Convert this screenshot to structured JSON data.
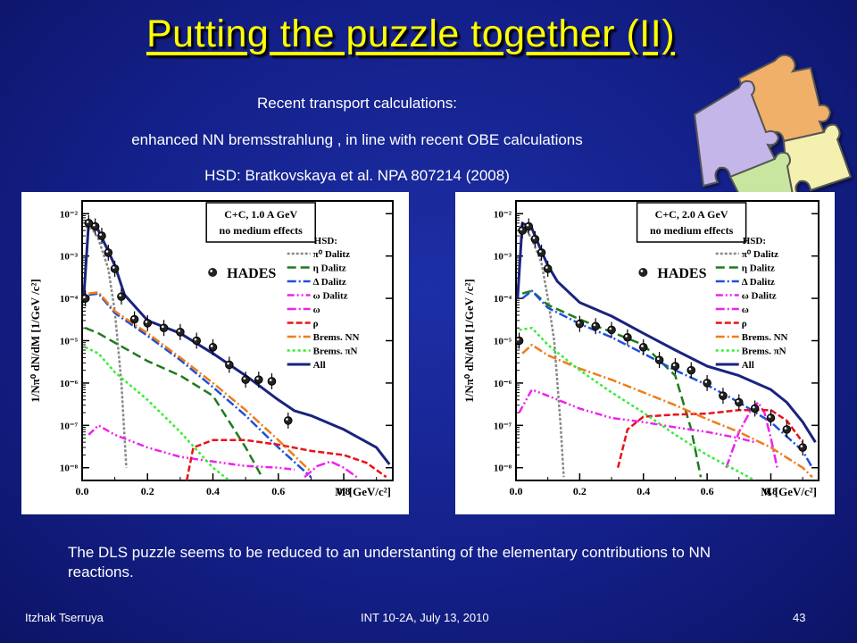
{
  "slide": {
    "title": "Putting the puzzle together (II)",
    "subtitle_line1": "Recent  transport calculations:",
    "subtitle_line2": "enhanced NN bremsstrahlung , in line with recent OBE calculations",
    "subtitle_line3": "HSD:  Bratkovskaya et al. NPA 807214 (2008)",
    "conclusion": "The DLS puzzle seems to be reduced to an understanting of the elementary contributions to NN reactions.",
    "footer_left": "Itzhak Tserruya",
    "footer_center": "INT 10-2A, July 13, 2010",
    "footer_right": "43"
  },
  "colors": {
    "pi0": "#888888",
    "eta": "#1f7a1f",
    "delta": "#1f4fd6",
    "omega_dalitz": "#ee22ee",
    "omega": "#ee22ee",
    "rho": "#e8121a",
    "brems_nn": "#ee7d1a",
    "brems_pin": "#33ee33",
    "all": "#1a237e"
  },
  "chart_data": [
    {
      "type": "line",
      "title": "C+C, 1.0 A GeV",
      "subtitle": "no medium effects",
      "xlabel": "M [GeV/c²]",
      "ylabel": "1/Nπ⁰ dN/dM  [1/GeV /c²]",
      "ylog": true,
      "xlim": [
        0,
        0.95
      ],
      "ylim": [
        5e-09,
        0.02
      ],
      "x_ticks": [
        "0.0",
        "0.2",
        "0.4",
        "0.6",
        "0.8"
      ],
      "y_ticks": [
        "10⁻²",
        "10⁻³",
        "10⁻⁴",
        "10⁻⁵",
        "10⁻⁶",
        "10⁻⁷",
        "10⁻⁸"
      ],
      "legend_title": "HSD:",
      "data_label": "HADES",
      "series": [
        {
          "name": "π⁰ Dalitz",
          "key": "pi0",
          "dash": "3,2",
          "x": [
            0.01,
            0.03,
            0.05,
            0.08,
            0.1,
            0.12,
            0.135
          ],
          "y": [
            0.005,
            0.0045,
            0.0025,
            0.0005,
            5e-05,
            1e-06,
            1e-08
          ]
        },
        {
          "name": "η Dalitz",
          "key": "eta",
          "dash": "10,5",
          "x": [
            0.01,
            0.05,
            0.1,
            0.2,
            0.3,
            0.4,
            0.5,
            0.55
          ],
          "y": [
            2e-05,
            1.5e-05,
            9e-06,
            3.3e-06,
            1.5e-06,
            5e-07,
            3e-08,
            6e-09
          ]
        },
        {
          "name": "Δ Dalitz",
          "key": "delta",
          "dash": "10,3,2,3",
          "x": [
            0.02,
            0.05,
            0.1,
            0.2,
            0.3,
            0.4,
            0.5,
            0.6,
            0.7
          ],
          "y": [
            0.00012,
            0.00013,
            4.5e-05,
            1.3e-05,
            3.5e-06,
            8e-07,
            1.7e-07,
            3e-08,
            6e-09
          ]
        },
        {
          "name": "ω Dalitz",
          "key": "omega_dalitz",
          "dash": "8,3,2,3,2,3",
          "x": [
            0.02,
            0.05,
            0.1,
            0.2,
            0.3,
            0.4,
            0.5,
            0.6,
            0.65
          ],
          "y": [
            6e-08,
            1e-07,
            6e-08,
            3e-08,
            1.8e-08,
            1.4e-08,
            1.1e-08,
            1e-08,
            9e-09
          ]
        },
        {
          "name": "ω",
          "key": "omega",
          "dash": "10,3,2,3",
          "x": [
            0.68,
            0.72,
            0.76,
            0.8,
            0.84
          ],
          "y": [
            6e-09,
            1.1e-08,
            1.4e-08,
            1e-08,
            6e-09
          ]
        },
        {
          "name": "ρ",
          "key": "rho",
          "dash": "7,3",
          "x": [
            0.32,
            0.34,
            0.4,
            0.5,
            0.6,
            0.7,
            0.8,
            0.87,
            0.93
          ],
          "y": [
            5e-09,
            3e-08,
            4.5e-08,
            4.5e-08,
            3.5e-08,
            2.5e-08,
            2e-08,
            1.3e-08,
            6e-09
          ]
        },
        {
          "name": "Brems. NN",
          "key": "brems_nn",
          "dash": "10,3,2,3",
          "x": [
            0.02,
            0.05,
            0.1,
            0.2,
            0.3,
            0.4,
            0.5,
            0.6,
            0.7
          ],
          "y": [
            0.00013,
            0.00014,
            5e-05,
            1.5e-05,
            4e-06,
            1e-06,
            2.3e-07,
            4.5e-08,
            8e-09
          ]
        },
        {
          "name": "Brems. πN",
          "key": "brems_pin",
          "dash": "3,3",
          "x": [
            0.01,
            0.05,
            0.1,
            0.2,
            0.3,
            0.4,
            0.45
          ],
          "y": [
            7e-06,
            5e-06,
            1.8e-06,
            4e-07,
            7e-08,
            1e-08,
            5e-09
          ]
        },
        {
          "name": "All",
          "key": "all",
          "dash": "",
          "x": [
            0.005,
            0.02,
            0.05,
            0.08,
            0.1,
            0.13,
            0.2,
            0.3,
            0.4,
            0.5,
            0.6,
            0.65,
            0.7,
            0.8,
            0.9,
            0.94
          ],
          "y": [
            0.0001,
            0.006,
            0.004,
            0.0013,
            0.0006,
            0.00012,
            3e-05,
            1.5e-05,
            5e-06,
            1.5e-06,
            4e-07,
            2.2e-07,
            1.7e-07,
            8e-08,
            3e-08,
            1.2e-08
          ]
        }
      ],
      "hades_points": [
        {
          "x": 0.01,
          "y": 0.0001
        },
        {
          "x": 0.02,
          "y": 0.006
        },
        {
          "x": 0.04,
          "y": 0.005
        },
        {
          "x": 0.06,
          "y": 0.003
        },
        {
          "x": 0.08,
          "y": 0.0012
        },
        {
          "x": 0.1,
          "y": 0.0005
        },
        {
          "x": 0.12,
          "y": 0.00011
        },
        {
          "x": 0.16,
          "y": 3.2e-05
        },
        {
          "x": 0.2,
          "y": 2.6e-05
        },
        {
          "x": 0.25,
          "y": 2e-05
        },
        {
          "x": 0.3,
          "y": 1.6e-05
        },
        {
          "x": 0.35,
          "y": 1e-05
        },
        {
          "x": 0.4,
          "y": 7e-06
        },
        {
          "x": 0.45,
          "y": 2.7e-06
        },
        {
          "x": 0.5,
          "y": 1.2e-06
        },
        {
          "x": 0.54,
          "y": 1.2e-06
        },
        {
          "x": 0.58,
          "y": 1.1e-06
        },
        {
          "x": 0.63,
          "y": 1.3e-07
        }
      ]
    },
    {
      "type": "line",
      "title": "C+C, 2.0 A GeV",
      "subtitle": "no medium effects",
      "xlabel": "M [GeV/c²]",
      "ylabel": "1/Nπ⁰ dN/dM  [1/GeV /c²]",
      "ylog": true,
      "xlim": [
        0,
        0.95
      ],
      "ylim": [
        5e-09,
        0.02
      ],
      "x_ticks": [
        "0.0",
        "0.2",
        "0.4",
        "0.6",
        "0.8"
      ],
      "y_ticks": [
        "10⁻²",
        "10⁻³",
        "10⁻⁴",
        "10⁻⁵",
        "10⁻⁶",
        "10⁻⁷",
        "10⁻⁸"
      ],
      "legend_title": "HSD:",
      "data_label": "HADES",
      "series": [
        {
          "name": "π⁰ Dalitz",
          "key": "pi0",
          "dash": "3,2",
          "x": [
            0.01,
            0.03,
            0.05,
            0.08,
            0.1,
            0.12,
            0.14,
            0.15
          ],
          "y": [
            0.005,
            0.0045,
            0.0025,
            0.0007,
            0.0001,
            1e-05,
            1e-07,
            6e-09
          ]
        },
        {
          "name": "η Dalitz",
          "key": "eta",
          "dash": "10,5",
          "x": [
            0.02,
            0.05,
            0.1,
            0.2,
            0.3,
            0.4,
            0.5,
            0.55,
            0.58
          ],
          "y": [
            0.00013,
            0.00015,
            7e-05,
            3.2e-05,
            1.6e-05,
            8e-06,
            1.5e-06,
            8e-08,
            6e-09
          ]
        },
        {
          "name": "Δ Dalitz",
          "key": "delta",
          "dash": "10,3,2,3",
          "x": [
            0.02,
            0.05,
            0.1,
            0.2,
            0.3,
            0.4,
            0.5,
            0.6,
            0.7,
            0.8,
            0.9,
            0.93
          ],
          "y": [
            0.0001,
            0.00015,
            6e-05,
            2.5e-05,
            1.2e-05,
            5e-06,
            2e-06,
            9e-07,
            3.5e-07,
            1.2e-07,
            2.5e-08,
            1e-08
          ]
        },
        {
          "name": "ω Dalitz",
          "key": "omega_dalitz",
          "dash": "8,3,2,3,2,3",
          "x": [
            0.01,
            0.05,
            0.1,
            0.2,
            0.3,
            0.4,
            0.5,
            0.6,
            0.7,
            0.75
          ],
          "y": [
            2e-07,
            7e-07,
            5e-07,
            2.5e-07,
            1.5e-07,
            1.2e-07,
            9e-08,
            7e-08,
            5e-08,
            4e-08
          ]
        },
        {
          "name": "ω",
          "key": "omega",
          "dash": "10,3,2,3",
          "x": [
            0.66,
            0.7,
            0.74,
            0.76,
            0.78,
            0.8,
            0.82
          ],
          "y": [
            1e-08,
            7e-08,
            2.5e-07,
            3.5e-07,
            2e-07,
            5e-08,
            1e-08
          ]
        },
        {
          "name": "ρ",
          "key": "rho",
          "dash": "7,3",
          "x": [
            0.32,
            0.35,
            0.4,
            0.5,
            0.6,
            0.7,
            0.8,
            0.85,
            0.9
          ],
          "y": [
            1e-08,
            8e-08,
            1.6e-07,
            1.8e-07,
            1.9e-07,
            2.3e-07,
            2.3e-07,
            1.3e-07,
            4e-08
          ]
        },
        {
          "name": "Brems. NN",
          "key": "brems_nn",
          "dash": "10,3,2,3",
          "x": [
            0.02,
            0.05,
            0.1,
            0.2,
            0.3,
            0.4,
            0.5,
            0.6,
            0.7,
            0.8,
            0.9,
            0.93
          ],
          "y": [
            5e-06,
            8e-06,
            4.5e-06,
            2.2e-06,
            1.2e-06,
            6e-07,
            3e-07,
            1.4e-07,
            7e-08,
            3e-08,
            1e-08,
            6e-09
          ]
        },
        {
          "name": "Brems. πN",
          "key": "brems_pin",
          "dash": "3,3",
          "x": [
            0.01,
            0.05,
            0.1,
            0.2,
            0.3,
            0.4,
            0.5,
            0.6,
            0.7,
            0.75
          ],
          "y": [
            1.8e-05,
            2e-05,
            8e-06,
            2e-06,
            6e-07,
            2e-07,
            6e-08,
            2e-08,
            8e-09,
            5e-09
          ]
        },
        {
          "name": "All",
          "key": "all",
          "dash": "",
          "x": [
            0.005,
            0.02,
            0.05,
            0.08,
            0.1,
            0.13,
            0.2,
            0.3,
            0.4,
            0.5,
            0.6,
            0.7,
            0.8,
            0.85,
            0.9,
            0.94
          ],
          "y": [
            0.0001,
            0.006,
            0.0045,
            0.0013,
            0.0006,
            0.00025,
            8e-05,
            3.8e-05,
            1.5e-05,
            6e-06,
            2.5e-06,
            1.5e-06,
            7e-07,
            3.5e-07,
            1.2e-07,
            4e-08
          ]
        }
      ],
      "hades_points": [
        {
          "x": 0.01,
          "y": 1e-05
        },
        {
          "x": 0.02,
          "y": 0.004
        },
        {
          "x": 0.04,
          "y": 0.005
        },
        {
          "x": 0.06,
          "y": 0.0025
        },
        {
          "x": 0.08,
          "y": 0.0012
        },
        {
          "x": 0.1,
          "y": 0.0005
        },
        {
          "x": 0.2,
          "y": 2.5e-05
        },
        {
          "x": 0.25,
          "y": 2.2e-05
        },
        {
          "x": 0.3,
          "y": 1.8e-05
        },
        {
          "x": 0.35,
          "y": 1.2e-05
        },
        {
          "x": 0.4,
          "y": 7e-06
        },
        {
          "x": 0.45,
          "y": 3.5e-06
        },
        {
          "x": 0.5,
          "y": 2.5e-06
        },
        {
          "x": 0.55,
          "y": 2e-06
        },
        {
          "x": 0.6,
          "y": 1e-06
        },
        {
          "x": 0.65,
          "y": 5e-07
        },
        {
          "x": 0.7,
          "y": 3.5e-07
        },
        {
          "x": 0.75,
          "y": 2.5e-07
        },
        {
          "x": 0.8,
          "y": 1.5e-07
        },
        {
          "x": 0.85,
          "y": 8e-08
        },
        {
          "x": 0.9,
          "y": 3e-08
        }
      ]
    }
  ]
}
